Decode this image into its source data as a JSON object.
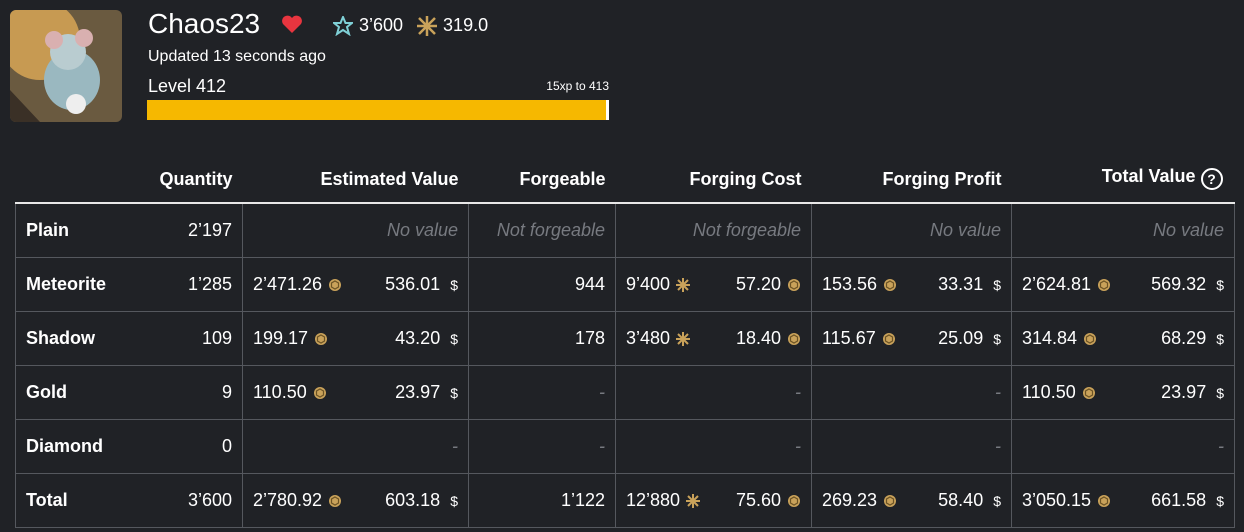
{
  "profile": {
    "name": "Chaos23",
    "essence": "3’600",
    "fragments": "319.0",
    "updated": "Updated 13 seconds ago",
    "level": "Level 412",
    "xp": "15xp to 413"
  },
  "table": {
    "currency": "$",
    "help": "?",
    "headers": [
      "Quantity",
      "Estimated Value",
      "Forgeable",
      "Forging Cost",
      "Forging Profit",
      "Total Value"
    ],
    "rows": [
      {
        "name": "Plain",
        "quantity": "2’197",
        "cells": [
          {
            "muted": "No value"
          },
          {
            "muted": "Not forgeable"
          },
          {
            "muted": "Not forgeable"
          },
          {
            "muted": "No value"
          },
          {
            "muted": "No value"
          }
        ]
      },
      {
        "name": "Meteorite",
        "quantity": "1’285",
        "cells": [
          {
            "coins": "2’471.26",
            "dollars": "536.01"
          },
          {
            "value": "944"
          },
          {
            "fragments": "9’400",
            "coins": "57.20"
          },
          {
            "coins": "153.56",
            "dollars": "33.31"
          },
          {
            "coins": "2’624.81",
            "dollars": "569.32"
          }
        ]
      },
      {
        "name": "Shadow",
        "quantity": "109",
        "cells": [
          {
            "coins": "199.17",
            "dollars": "43.20"
          },
          {
            "value": "178"
          },
          {
            "fragments": "3’480",
            "coins": "18.40"
          },
          {
            "coins": "115.67",
            "dollars": "25.09"
          },
          {
            "coins": "314.84",
            "dollars": "68.29"
          }
        ]
      },
      {
        "name": "Gold",
        "quantity": "9",
        "cells": [
          {
            "coins": "110.50",
            "dollars": "23.97"
          },
          {
            "muted": "-"
          },
          {
            "muted": "-"
          },
          {
            "muted": "-"
          },
          {
            "coins": "110.50",
            "dollars": "23.97"
          }
        ]
      },
      {
        "name": "Diamond",
        "quantity": "0",
        "cells": [
          {
            "muted": "-"
          },
          {
            "muted": "-"
          },
          {
            "muted": "-"
          },
          {
            "muted": "-"
          },
          {
            "muted": "-"
          }
        ]
      },
      {
        "name": "Total",
        "quantity": "3’600",
        "cells": [
          {
            "coins": "2’780.92",
            "dollars": "603.18"
          },
          {
            "value": "1’122"
          },
          {
            "fragments": "12’880",
            "coins": "75.60"
          },
          {
            "coins": "269.23",
            "dollars": "58.40"
          },
          {
            "coins": "3’050.15",
            "dollars": "661.58"
          }
        ]
      }
    ]
  }
}
